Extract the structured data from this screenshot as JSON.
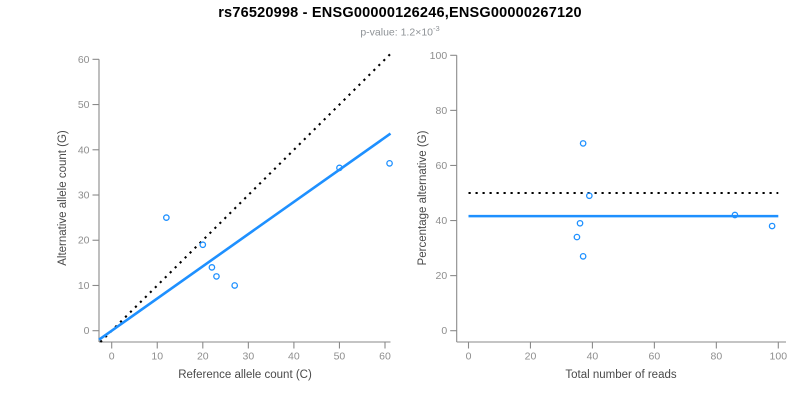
{
  "header": {
    "title": "rs76520998 - ENSG00000126246,ENSG00000267120",
    "pvalue_label": "p-value: ",
    "pvalue_value": "1.2×10",
    "pvalue_exponent": "-3"
  },
  "colors": {
    "series_blue": "#1E90FF",
    "reference_black": "#000000",
    "axis_gray": "#8a8a8a",
    "tick_label_gray": "#8e8e8e",
    "axis_title_gray": "#4a4a4a"
  },
  "chart_data": [
    {
      "type": "scatter",
      "panel": "allele-counts",
      "xlabel": "Reference allele count (C)",
      "ylabel": "Alternative allele count (G)",
      "xlim": [
        0,
        60
      ],
      "ylim": [
        0,
        60
      ],
      "xticks": [
        0,
        10,
        20,
        30,
        40,
        50,
        60
      ],
      "yticks": [
        0,
        10,
        20,
        30,
        40,
        50,
        60
      ],
      "grid": false,
      "points": [
        [
          12,
          25
        ],
        [
          20,
          19
        ],
        [
          22,
          14
        ],
        [
          23,
          12
        ],
        [
          27,
          10
        ],
        [
          50,
          36
        ],
        [
          61,
          37
        ]
      ],
      "point_color": "#1E90FF",
      "lines": [
        {
          "name": "identity-line",
          "style": "dotted",
          "color": "#000000",
          "slope": 1,
          "intercept": 0
        },
        {
          "name": "fit-line",
          "style": "solid",
          "color": "#1E90FF",
          "slope": 0.712,
          "intercept": 0
        }
      ]
    },
    {
      "type": "scatter",
      "panel": "percentage-alternative",
      "xlabel": "Total number of reads",
      "ylabel": "Percentage alternative (G)",
      "xlim": [
        0,
        100
      ],
      "ylim": [
        0,
        100
      ],
      "xticks": [
        0,
        20,
        40,
        60,
        80,
        100
      ],
      "yticks": [
        0,
        20,
        40,
        60,
        80,
        100
      ],
      "grid": false,
      "points": [
        [
          37,
          68
        ],
        [
          39,
          49
        ],
        [
          36,
          39
        ],
        [
          35,
          34
        ],
        [
          37,
          27
        ],
        [
          86,
          42
        ],
        [
          98,
          38
        ]
      ],
      "point_color": "#1E90FF",
      "lines": [
        {
          "name": "expected-50pct-line",
          "style": "dotted",
          "color": "#000000",
          "slope": 0,
          "intercept": 50,
          "x_range": [
            0,
            100
          ]
        },
        {
          "name": "mean-pct-line",
          "style": "solid",
          "color": "#1E90FF",
          "slope": 0,
          "intercept": 41.6,
          "x_range": [
            0,
            100
          ]
        }
      ]
    }
  ]
}
